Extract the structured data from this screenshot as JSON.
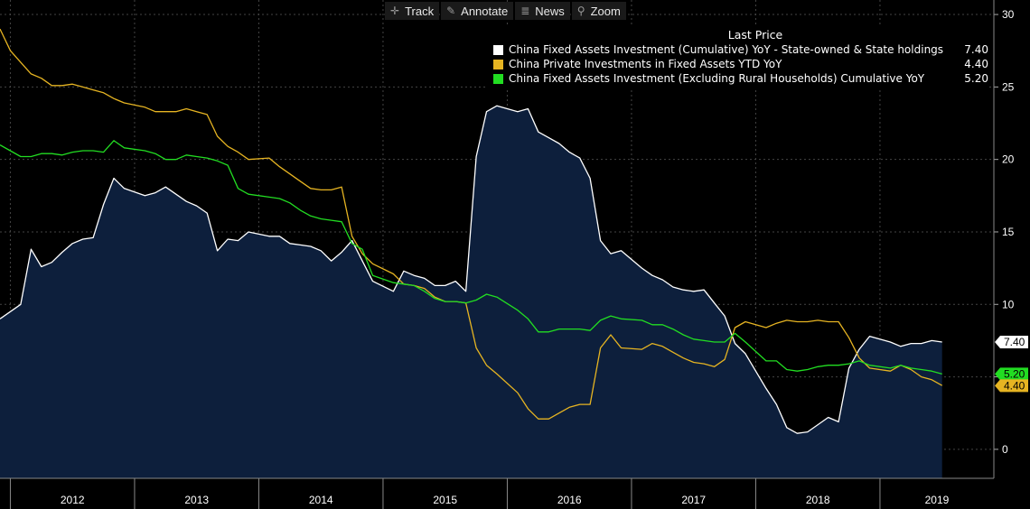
{
  "toolbar": {
    "track_label": "Track",
    "annotate_label": "Annotate",
    "news_label": "News",
    "zoom_label": "Zoom"
  },
  "legend": {
    "title": "Last Price",
    "items": [
      {
        "name": "China Fixed Assets Investment (Cumulative) YoY - State-owned & State holdings",
        "value": "7.40",
        "color": "#ffffff"
      },
      {
        "name": "China Private Investments in Fixed Assets YTD YoY",
        "value": "4.40",
        "color": "#e6b422"
      },
      {
        "name": "China Fixed Assets Investment (Excluding Rural Households) Cumulative YoY",
        "value": "5.20",
        "color": "#22dd22"
      }
    ]
  },
  "chart_data": {
    "type": "line",
    "x_axis_labels": [
      "2012",
      "2013",
      "2014",
      "2015",
      "2016",
      "2017",
      "2018",
      "2019"
    ],
    "x_range": [
      "2011-12",
      "2019-12"
    ],
    "ylim": [
      -2,
      31
    ],
    "y_ticks": [
      0,
      5,
      10,
      15,
      20,
      25,
      30
    ],
    "legend_position": "top-right",
    "grid": true,
    "colors": {
      "background": "#000000",
      "area_fill": "#0d1f3c",
      "grid": "#444444",
      "axis": "#888888"
    },
    "series": [
      {
        "name": "China Fixed Assets Investment (Cumulative) YoY - State-owned & State holdings",
        "color": "#ffffff",
        "style": "area",
        "last_label": "7.40",
        "points": [
          [
            "2011-12",
            9.0
          ],
          [
            "2012-02",
            10.0
          ],
          [
            "2012-03",
            13.8
          ],
          [
            "2012-04",
            12.6
          ],
          [
            "2012-05",
            12.9
          ],
          [
            "2012-06",
            13.6
          ],
          [
            "2012-07",
            14.2
          ],
          [
            "2012-08",
            14.5
          ],
          [
            "2012-09",
            14.6
          ],
          [
            "2012-10",
            16.9
          ],
          [
            "2012-11",
            18.7
          ],
          [
            "2012-12",
            18.0
          ],
          [
            "2013-02",
            17.5
          ],
          [
            "2013-03",
            17.7
          ],
          [
            "2013-04",
            18.1
          ],
          [
            "2013-05",
            17.6
          ],
          [
            "2013-06",
            17.1
          ],
          [
            "2013-07",
            16.8
          ],
          [
            "2013-08",
            16.3
          ],
          [
            "2013-09",
            13.7
          ],
          [
            "2013-10",
            14.5
          ],
          [
            "2013-11",
            14.4
          ],
          [
            "2013-12",
            15.0
          ],
          [
            "2014-02",
            14.7
          ],
          [
            "2014-03",
            14.7
          ],
          [
            "2014-04",
            14.2
          ],
          [
            "2014-05",
            14.1
          ],
          [
            "2014-06",
            14.0
          ],
          [
            "2014-07",
            13.7
          ],
          [
            "2014-08",
            13.0
          ],
          [
            "2014-09",
            13.6
          ],
          [
            "2014-10",
            14.4
          ],
          [
            "2014-11",
            13.0
          ],
          [
            "2014-12",
            11.6
          ],
          [
            "2015-02",
            10.9
          ],
          [
            "2015-03",
            12.3
          ],
          [
            "2015-04",
            12.0
          ],
          [
            "2015-05",
            11.8
          ],
          [
            "2015-06",
            11.3
          ],
          [
            "2015-07",
            11.3
          ],
          [
            "2015-08",
            11.6
          ],
          [
            "2015-09",
            10.9
          ],
          [
            "2015-10",
            20.2
          ],
          [
            "2015-11",
            23.3
          ],
          [
            "2015-12",
            23.7
          ],
          [
            "2016-02",
            23.3
          ],
          [
            "2016-03",
            23.5
          ],
          [
            "2016-04",
            21.9
          ],
          [
            "2016-05",
            21.5
          ],
          [
            "2016-06",
            21.1
          ],
          [
            "2016-07",
            20.5
          ],
          [
            "2016-08",
            20.1
          ],
          [
            "2016-09",
            18.7
          ],
          [
            "2016-10",
            14.4
          ],
          [
            "2016-11",
            13.5
          ],
          [
            "2016-12",
            13.7
          ],
          [
            "2017-02",
            12.5
          ],
          [
            "2017-03",
            12.0
          ],
          [
            "2017-04",
            11.7
          ],
          [
            "2017-05",
            11.2
          ],
          [
            "2017-06",
            11.0
          ],
          [
            "2017-07",
            10.9
          ],
          [
            "2017-08",
            11.0
          ],
          [
            "2017-09",
            10.1
          ],
          [
            "2017-10",
            9.2
          ],
          [
            "2017-11",
            7.3
          ],
          [
            "2017-12",
            6.6
          ],
          [
            "2018-02",
            4.2
          ],
          [
            "2018-03",
            3.1
          ],
          [
            "2018-04",
            1.5
          ],
          [
            "2018-05",
            1.1
          ],
          [
            "2018-06",
            1.2
          ],
          [
            "2018-07",
            1.7
          ],
          [
            "2018-08",
            2.2
          ],
          [
            "2018-09",
            1.9
          ],
          [
            "2018-10",
            5.6
          ],
          [
            "2018-11",
            6.9
          ],
          [
            "2018-12",
            7.8
          ],
          [
            "2019-02",
            7.4
          ],
          [
            "2019-03",
            7.1
          ],
          [
            "2019-04",
            7.3
          ],
          [
            "2019-05",
            7.3
          ],
          [
            "2019-06",
            7.5
          ],
          [
            "2019-07",
            7.4
          ]
        ]
      },
      {
        "name": "China Private Investments in Fixed Assets YTD YoY",
        "color": "#e6b422",
        "style": "line",
        "last_label": "4.40",
        "points": [
          [
            "2011-12",
            29.0
          ],
          [
            "2012-01",
            27.5
          ],
          [
            "2012-02",
            26.7
          ],
          [
            "2012-03",
            25.9
          ],
          [
            "2012-04",
            25.6
          ],
          [
            "2012-05",
            25.1
          ],
          [
            "2012-06",
            25.1
          ],
          [
            "2012-07",
            25.2
          ],
          [
            "2012-08",
            25.0
          ],
          [
            "2012-09",
            24.8
          ],
          [
            "2012-10",
            24.6
          ],
          [
            "2012-11",
            24.2
          ],
          [
            "2012-12",
            23.9
          ],
          [
            "2013-02",
            23.6
          ],
          [
            "2013-03",
            23.3
          ],
          [
            "2013-04",
            23.3
          ],
          [
            "2013-05",
            23.3
          ],
          [
            "2013-06",
            23.5
          ],
          [
            "2013-07",
            23.3
          ],
          [
            "2013-08",
            23.1
          ],
          [
            "2013-09",
            21.6
          ],
          [
            "2013-10",
            20.9
          ],
          [
            "2013-11",
            20.5
          ],
          [
            "2013-12",
            20.0
          ],
          [
            "2014-02",
            20.1
          ],
          [
            "2014-03",
            19.5
          ],
          [
            "2014-04",
            19.0
          ],
          [
            "2014-05",
            18.5
          ],
          [
            "2014-06",
            18.0
          ],
          [
            "2014-07",
            17.9
          ],
          [
            "2014-08",
            17.9
          ],
          [
            "2014-09",
            18.1
          ],
          [
            "2014-10",
            14.7
          ],
          [
            "2014-11",
            13.5
          ],
          [
            "2014-12",
            12.8
          ],
          [
            "2015-02",
            12.1
          ],
          [
            "2015-03",
            11.4
          ],
          [
            "2015-04",
            11.3
          ],
          [
            "2015-05",
            11.1
          ],
          [
            "2015-06",
            10.5
          ],
          [
            "2015-07",
            10.2
          ],
          [
            "2015-08",
            10.2
          ],
          [
            "2015-09",
            10.1
          ],
          [
            "2015-10",
            7.0
          ],
          [
            "2015-11",
            5.8
          ],
          [
            "2015-12",
            5.2
          ],
          [
            "2016-02",
            3.9
          ],
          [
            "2016-03",
            2.8
          ],
          [
            "2016-04",
            2.1
          ],
          [
            "2016-05",
            2.1
          ],
          [
            "2016-06",
            2.5
          ],
          [
            "2016-07",
            2.9
          ],
          [
            "2016-08",
            3.1
          ],
          [
            "2016-09",
            3.1
          ],
          [
            "2016-10",
            7.0
          ],
          [
            "2016-11",
            7.9
          ],
          [
            "2016-12",
            7.0
          ],
          [
            "2017-02",
            6.9
          ],
          [
            "2017-03",
            7.3
          ],
          [
            "2017-04",
            7.1
          ],
          [
            "2017-05",
            6.7
          ],
          [
            "2017-06",
            6.3
          ],
          [
            "2017-07",
            6.0
          ],
          [
            "2017-08",
            5.9
          ],
          [
            "2017-09",
            5.7
          ],
          [
            "2017-10",
            6.2
          ],
          [
            "2017-11",
            8.4
          ],
          [
            "2017-12",
            8.8
          ],
          [
            "2018-02",
            8.4
          ],
          [
            "2018-03",
            8.7
          ],
          [
            "2018-04",
            8.9
          ],
          [
            "2018-05",
            8.8
          ],
          [
            "2018-06",
            8.8
          ],
          [
            "2018-07",
            8.9
          ],
          [
            "2018-08",
            8.8
          ],
          [
            "2018-09",
            8.8
          ],
          [
            "2018-10",
            7.7
          ],
          [
            "2018-11",
            6.3
          ],
          [
            "2018-12",
            5.6
          ],
          [
            "2019-02",
            5.4
          ],
          [
            "2019-03",
            5.8
          ],
          [
            "2019-04",
            5.5
          ],
          [
            "2019-05",
            5.0
          ],
          [
            "2019-06",
            4.8
          ],
          [
            "2019-07",
            4.4
          ]
        ]
      },
      {
        "name": "China Fixed Assets Investment (Excluding Rural Households) Cumulative YoY",
        "color": "#22dd22",
        "style": "line",
        "last_label": "5.20",
        "points": [
          [
            "2011-12",
            21.0
          ],
          [
            "2012-02",
            20.2
          ],
          [
            "2012-03",
            20.2
          ],
          [
            "2012-04",
            20.4
          ],
          [
            "2012-05",
            20.4
          ],
          [
            "2012-06",
            20.3
          ],
          [
            "2012-07",
            20.5
          ],
          [
            "2012-08",
            20.6
          ],
          [
            "2012-09",
            20.6
          ],
          [
            "2012-10",
            20.5
          ],
          [
            "2012-11",
            21.3
          ],
          [
            "2012-12",
            20.8
          ],
          [
            "2013-02",
            20.6
          ],
          [
            "2013-03",
            20.4
          ],
          [
            "2013-04",
            20.0
          ],
          [
            "2013-05",
            20.0
          ],
          [
            "2013-06",
            20.3
          ],
          [
            "2013-07",
            20.2
          ],
          [
            "2013-08",
            20.1
          ],
          [
            "2013-09",
            19.9
          ],
          [
            "2013-10",
            19.6
          ],
          [
            "2013-11",
            18.0
          ],
          [
            "2013-12",
            17.6
          ],
          [
            "2014-02",
            17.4
          ],
          [
            "2014-03",
            17.3
          ],
          [
            "2014-04",
            17.0
          ],
          [
            "2014-05",
            16.5
          ],
          [
            "2014-06",
            16.1
          ],
          [
            "2014-07",
            15.9
          ],
          [
            "2014-08",
            15.8
          ],
          [
            "2014-09",
            15.7
          ],
          [
            "2014-10",
            14.2
          ],
          [
            "2014-11",
            13.8
          ],
          [
            "2014-12",
            12.0
          ],
          [
            "2015-02",
            11.5
          ],
          [
            "2015-03",
            11.4
          ],
          [
            "2015-04",
            11.3
          ],
          [
            "2015-05",
            10.9
          ],
          [
            "2015-06",
            10.4
          ],
          [
            "2015-07",
            10.2
          ],
          [
            "2015-08",
            10.2
          ],
          [
            "2015-09",
            10.1
          ],
          [
            "2015-10",
            10.3
          ],
          [
            "2015-11",
            10.7
          ],
          [
            "2015-12",
            10.5
          ],
          [
            "2016-02",
            9.6
          ],
          [
            "2016-03",
            9.0
          ],
          [
            "2016-04",
            8.1
          ],
          [
            "2016-05",
            8.1
          ],
          [
            "2016-06",
            8.3
          ],
          [
            "2016-07",
            8.3
          ],
          [
            "2016-08",
            8.3
          ],
          [
            "2016-09",
            8.2
          ],
          [
            "2016-10",
            8.9
          ],
          [
            "2016-11",
            9.2
          ],
          [
            "2016-12",
            9.0
          ],
          [
            "2017-02",
            8.9
          ],
          [
            "2017-03",
            8.6
          ],
          [
            "2017-04",
            8.6
          ],
          [
            "2017-05",
            8.3
          ],
          [
            "2017-06",
            7.9
          ],
          [
            "2017-07",
            7.6
          ],
          [
            "2017-08",
            7.5
          ],
          [
            "2017-09",
            7.4
          ],
          [
            "2017-10",
            7.4
          ],
          [
            "2017-11",
            8.0
          ],
          [
            "2017-12",
            7.4
          ],
          [
            "2018-02",
            6.1
          ],
          [
            "2018-03",
            6.1
          ],
          [
            "2018-04",
            5.5
          ],
          [
            "2018-05",
            5.4
          ],
          [
            "2018-06",
            5.5
          ],
          [
            "2018-07",
            5.7
          ],
          [
            "2018-08",
            5.8
          ],
          [
            "2018-09",
            5.8
          ],
          [
            "2018-10",
            5.9
          ],
          [
            "2018-11",
            6.1
          ],
          [
            "2018-12",
            5.8
          ],
          [
            "2019-02",
            5.6
          ],
          [
            "2019-03",
            5.8
          ],
          [
            "2019-04",
            5.6
          ],
          [
            "2019-05",
            5.5
          ],
          [
            "2019-06",
            5.4
          ],
          [
            "2019-07",
            5.2
          ]
        ]
      }
    ]
  }
}
